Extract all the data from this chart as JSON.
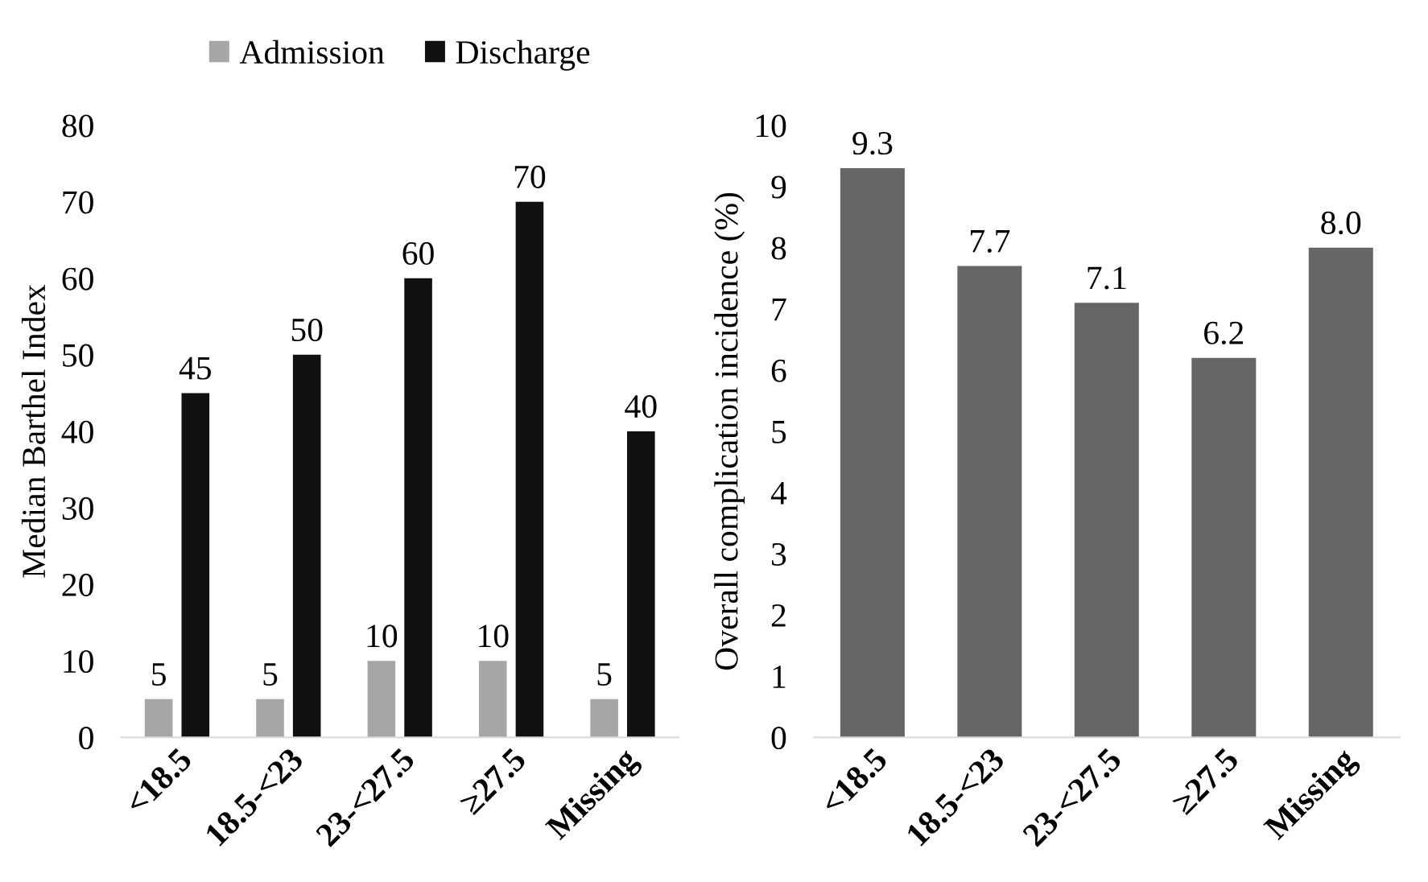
{
  "chart_data": [
    {
      "type": "bar",
      "ylabel": "Median Barthel Index",
      "categories": [
        "<18.5",
        "18.5-<23",
        "23-<27.5",
        "≥27.5",
        "Missing"
      ],
      "series": [
        {
          "name": "Admission",
          "color": "#a6a6a6",
          "values": [
            5,
            5,
            10,
            10,
            5
          ]
        },
        {
          "name": "Discharge",
          "color": "#111111",
          "values": [
            45,
            50,
            60,
            70,
            40
          ]
        }
      ],
      "ylim": [
        0,
        80
      ],
      "yticks": [
        0,
        10,
        20,
        30,
        40,
        50,
        60,
        70,
        80
      ],
      "data_labels": true,
      "legend": "top",
      "grid": false
    },
    {
      "type": "bar",
      "ylabel": "Overall complication incidence (%)",
      "categories": [
        "<18.5",
        "18.5-<23",
        "23-<27.5",
        "≥27.5",
        "Missing"
      ],
      "series": [
        {
          "color": "#666666",
          "values": [
            9.3,
            7.7,
            7.1,
            6.2,
            8.0
          ],
          "value_labels": [
            "9.3",
            "7.7",
            "7.1",
            "6.2",
            "8.0"
          ]
        }
      ],
      "ylim": [
        0,
        10
      ],
      "yticks": [
        0,
        1,
        2,
        3,
        4,
        5,
        6,
        7,
        8,
        9,
        10
      ],
      "grid": false
    }
  ]
}
